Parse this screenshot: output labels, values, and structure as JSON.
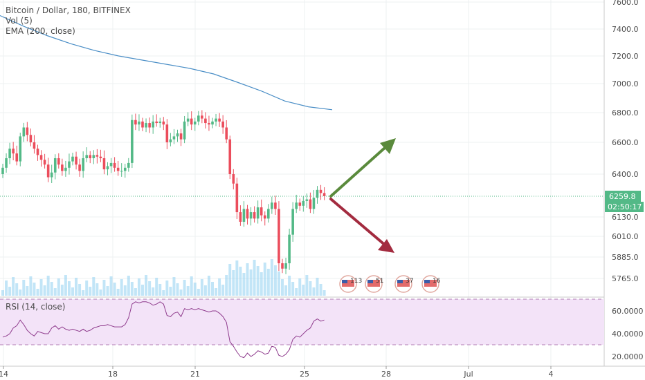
{
  "legend": {
    "title": "Bitcoin / Dollar, 180, BITFINEX",
    "volume": "Vol (5)",
    "ema": "EMA (200, close)",
    "rsi": "RSI (14, close)"
  },
  "price_axis": {
    "ticks": [
      "7600.0",
      "7400.0",
      "7200.0",
      "7000.0",
      "6800.0",
      "6600.0",
      "6400.0",
      "6130.0",
      "6010.0",
      "5885.0",
      "5765.0"
    ],
    "last_price": "6259.8",
    "countdown": "02:50:17"
  },
  "rsi_axis": {
    "ticks": [
      "60.0000",
      "40.0000",
      "20.0000"
    ]
  },
  "time_axis": {
    "ticks": [
      "14",
      "18",
      "21",
      "25",
      "28",
      "Jul",
      "4"
    ]
  },
  "event_badges": [
    "113",
    "51",
    "37",
    "16"
  ],
  "colors": {
    "up": "#53b987",
    "down": "#eb4d5c",
    "ema": "#4a8ec6",
    "volume": "#8fcff0",
    "rsi_line": "#8e3a8c",
    "rsi_band": "#f3e3f8",
    "arrow_up": "#5a8a3c",
    "arrow_down": "#a32b3f",
    "last_price_bg": "#53b987",
    "countdown_bg": "#53b987"
  },
  "chart_data": {
    "type": "candlestick",
    "title": "Bitcoin / Dollar, 180, BITFINEX",
    "ylim": [
      5700,
      7620
    ],
    "close_series": [
      6440,
      6500,
      6560,
      6530,
      6480,
      6640,
      6700,
      6650,
      6600,
      6560,
      6520,
      6490,
      6460,
      6380,
      6410,
      6500,
      6460,
      6420,
      6440,
      6480,
      6510,
      6460,
      6420,
      6500,
      6520,
      6500,
      6520,
      6510,
      6500,
      6430,
      6450,
      6470,
      6440,
      6420,
      6420,
      6440,
      6470,
      6750,
      6720,
      6740,
      6700,
      6730,
      6700,
      6740,
      6730,
      6740,
      6720,
      6600,
      6620,
      6640,
      6660,
      6620,
      6740,
      6760,
      6720,
      6740,
      6780,
      6760,
      6730,
      6720,
      6740,
      6760,
      6740,
      6700,
      6620,
      6400,
      6340,
      6160,
      6100,
      6180,
      6120,
      6160,
      6120,
      6190,
      6140,
      6120,
      6180,
      6220,
      6180,
      5850,
      5820,
      5850,
      6020,
      6180,
      6220,
      6200,
      6230,
      6240,
      6180,
      6250,
      6300,
      6280,
      6260
    ],
    "ema_series": [
      7500,
      7420,
      7350,
      7290,
      7240,
      7200,
      7170,
      7140,
      7110,
      7070,
      7010,
      6950,
      6880,
      6840,
      6820
    ],
    "rsi_series": [
      37,
      38,
      40,
      45,
      47,
      52,
      48,
      43,
      40,
      38,
      42,
      41,
      40,
      40,
      45,
      47,
      44,
      46,
      44,
      43,
      44,
      43,
      42,
      44,
      42,
      43,
      45,
      46,
      47,
      47,
      48,
      47,
      46,
      46,
      46,
      48,
      54,
      66,
      68,
      67,
      68,
      68,
      67,
      65,
      66,
      68,
      66,
      56,
      55,
      58,
      59,
      55,
      62,
      61,
      62,
      61,
      62,
      61,
      60,
      59,
      60,
      60,
      58,
      55,
      50,
      33,
      29,
      24,
      20,
      19,
      23,
      20,
      22,
      25,
      24,
      22,
      23,
      29,
      28,
      21,
      20,
      22,
      26,
      35,
      38,
      37,
      40,
      43,
      45,
      51,
      53,
      51,
      52
    ],
    "rsi_ylim": [
      10,
      70
    ],
    "rsi_levels": [
      70,
      30
    ],
    "annotations": [
      "arrow up from ~6259 toward ~6600",
      "arrow down from ~6259 toward ~5900"
    ]
  }
}
